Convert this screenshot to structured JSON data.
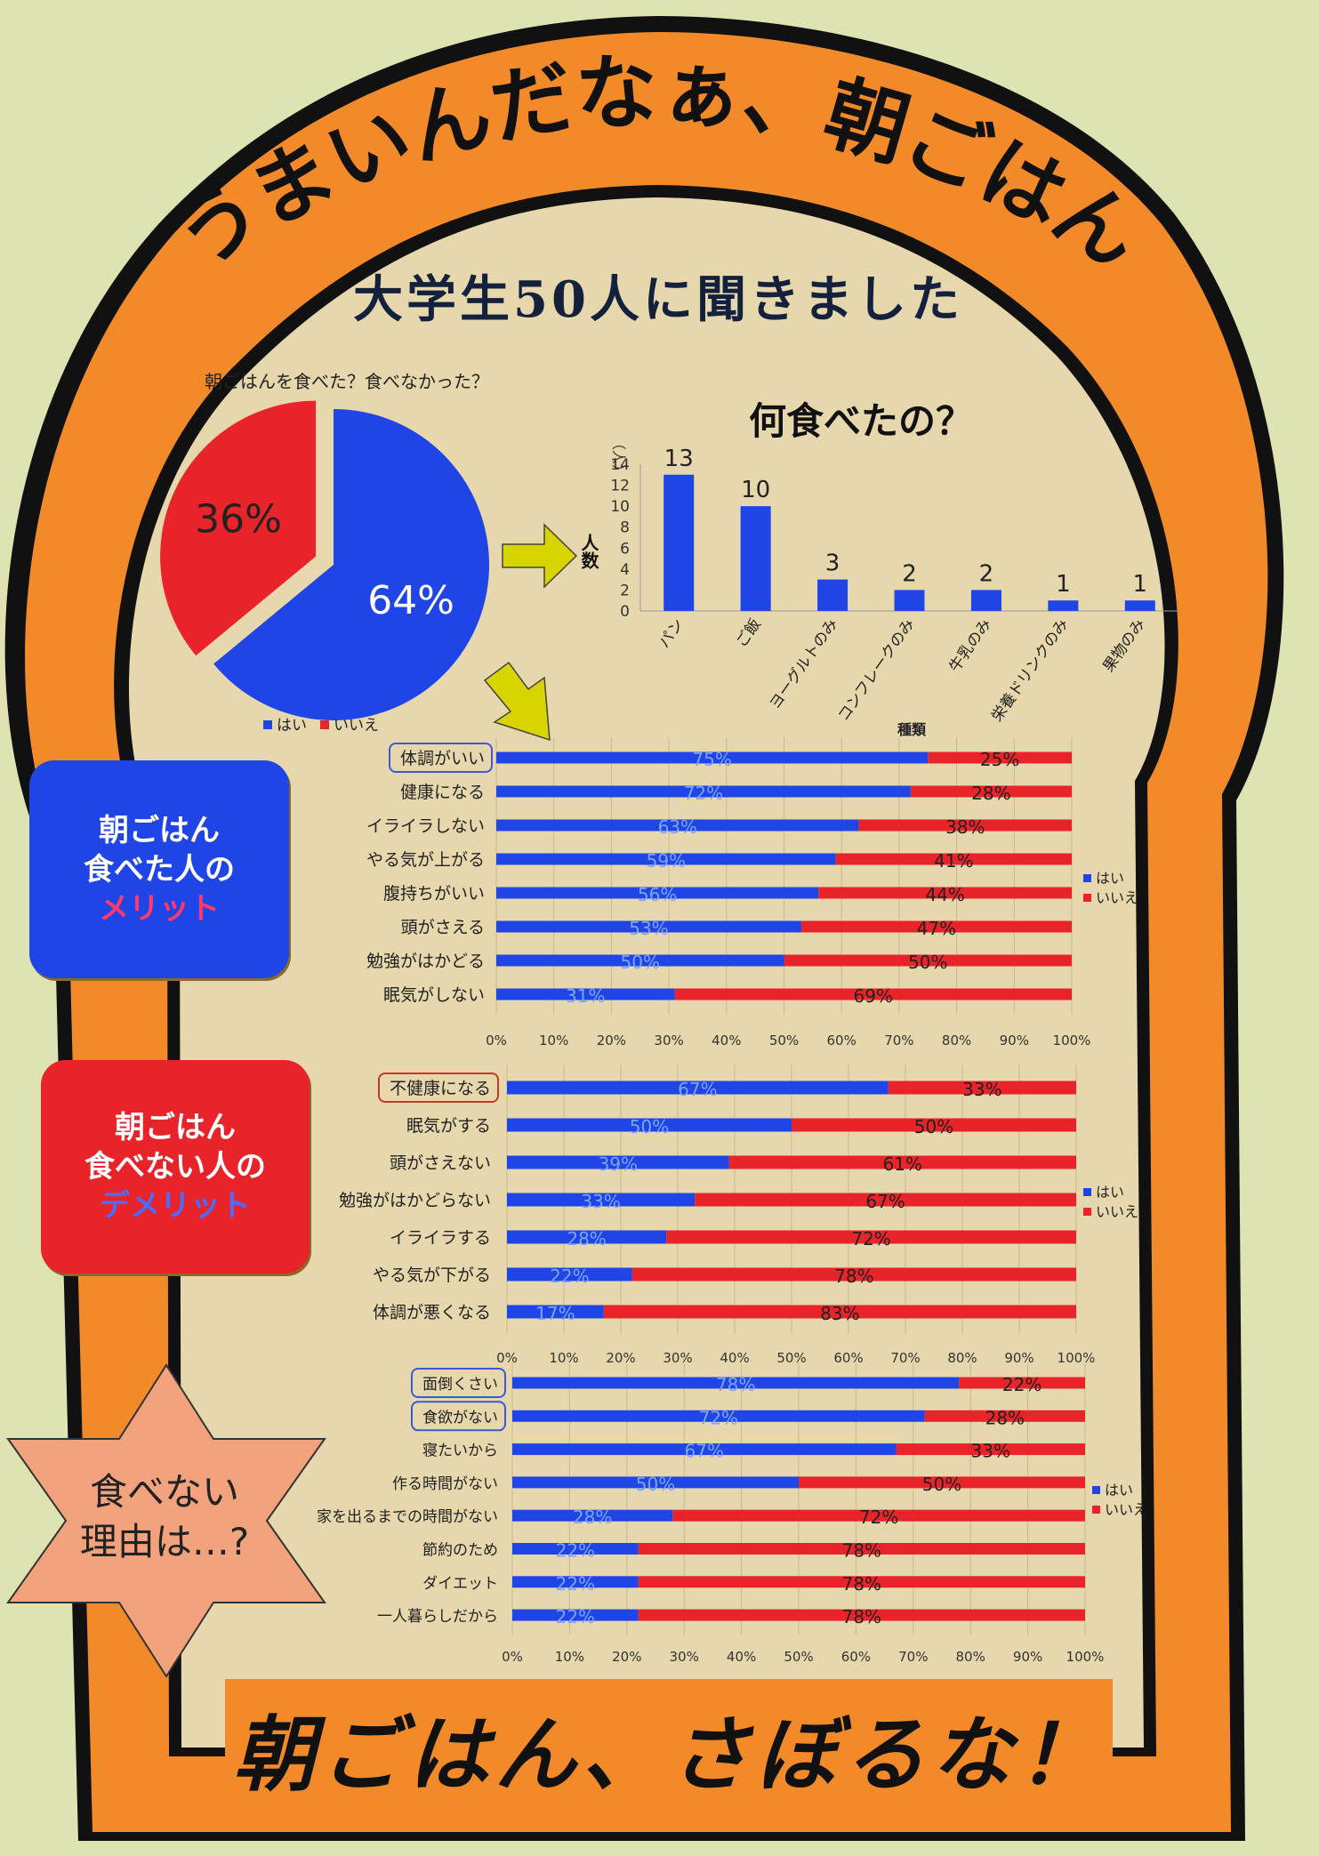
{
  "title": "うまいんだなぁ、朝ごはん",
  "subtitle": "大学生50人に聞きました",
  "footer": "朝ごはん、さぼるな！",
  "colors": {
    "yes": "#1f45e6",
    "no": "#e8232a",
    "orange": "#f28a2a",
    "paper": "#e7d7ad"
  },
  "labels": {
    "merit_box": [
      "朝ごはん",
      "食べた人の",
      "メリット"
    ],
    "demerit_box": [
      "朝ごはん",
      "食べない人の",
      "デメリット"
    ],
    "reason_star": [
      "食べない",
      "理由は…?"
    ]
  },
  "chart_data": [
    {
      "type": "pie",
      "title": "朝ごはんを食べた？食べなかった？",
      "slices": [
        {
          "label": "はい",
          "value": 64,
          "text": "64%"
        },
        {
          "label": "いいえ",
          "value": 36,
          "text": "36%"
        }
      ],
      "legend": [
        "はい",
        "いいえ"
      ],
      "legend_position": "bottom"
    },
    {
      "type": "bar",
      "title": "何食べたの？",
      "unit": "（人）",
      "ylabel": "人数",
      "xlabel": "種類",
      "categories": [
        "パン",
        "ご飯",
        "ヨーグルトのみ",
        "コンフレークのみ",
        "牛乳のみ",
        "栄養ドリンクのみ",
        "果物のみ"
      ],
      "values": [
        13,
        10,
        3,
        2,
        2,
        1,
        1
      ],
      "yticks": [
        "0",
        "2",
        "4",
        "6",
        "8",
        "10",
        "12",
        "14"
      ],
      "ylim": [
        0,
        14
      ]
    },
    {
      "type": "bar",
      "orientation": "horizontal-stacked",
      "categories": [
        "体調がいい",
        "健康になる",
        "イライラしない",
        "やる気が上がる",
        "腹持ちがいい",
        "頭がさえる",
        "勉強がはかどる",
        "眠気がしない"
      ],
      "highlighted": [
        "体調がいい"
      ],
      "series": [
        {
          "name": "はい",
          "values": [
            75,
            72,
            63,
            59,
            56,
            53,
            50,
            31
          ],
          "labels": [
            "75%",
            "72%",
            "63%",
            "59%",
            "56%",
            "53%",
            "50%",
            "31%"
          ]
        },
        {
          "name": "いいえ",
          "values": [
            25,
            28,
            38,
            41,
            44,
            47,
            50,
            69
          ],
          "labels": [
            "25%",
            "28%",
            "38%",
            "41%",
            "44%",
            "47%",
            "50%",
            "69%"
          ]
        }
      ],
      "xticks": [
        "0%",
        "10%",
        "20%",
        "30%",
        "40%",
        "50%",
        "60%",
        "70%",
        "80%",
        "90%",
        "100%"
      ],
      "legend": [
        "はい",
        "いいえ"
      ],
      "legend_position": "right"
    },
    {
      "type": "bar",
      "orientation": "horizontal-stacked",
      "categories": [
        "不健康になる",
        "眠気がする",
        "頭がさえない",
        "勉強がはかどらない",
        "イライラする",
        "やる気が下がる",
        "体調が悪くなる"
      ],
      "highlighted": [
        "不健康になる"
      ],
      "series": [
        {
          "name": "はい",
          "values": [
            67,
            50,
            39,
            33,
            28,
            22,
            17
          ],
          "labels": [
            "67%",
            "50%",
            "39%",
            "33%",
            "28%",
            "22%",
            "17%"
          ]
        },
        {
          "name": "いいえ",
          "values": [
            33,
            50,
            61,
            67,
            72,
            78,
            83
          ],
          "labels": [
            "33%",
            "50%",
            "61%",
            "67%",
            "72%",
            "78%",
            "83%"
          ]
        }
      ],
      "xticks": [
        "0%",
        "10%",
        "20%",
        "30%",
        "40%",
        "50%",
        "60%",
        "70%",
        "80%",
        "90%",
        "100%"
      ],
      "legend": [
        "はい",
        "いいえ"
      ],
      "legend_position": "right"
    },
    {
      "type": "bar",
      "orientation": "horizontal-stacked",
      "categories": [
        "面倒くさい",
        "食欲がない",
        "寝たいから",
        "作る時間がない",
        "家を出るまでの時間がない",
        "節約のため",
        "ダイエット",
        "一人暮らしだから"
      ],
      "highlighted": [
        "面倒くさい",
        "食欲がない"
      ],
      "series": [
        {
          "name": "はい",
          "values": [
            78,
            72,
            67,
            50,
            28,
            22,
            22,
            22
          ],
          "labels": [
            "78%",
            "72%",
            "67%",
            "50%",
            "28%",
            "22%",
            "22%",
            "22%"
          ]
        },
        {
          "name": "いいえ",
          "values": [
            22,
            28,
            33,
            50,
            72,
            78,
            78,
            78
          ],
          "labels": [
            "22%",
            "28%",
            "33%",
            "50%",
            "72%",
            "78%",
            "78%",
            "78%"
          ]
        }
      ],
      "xticks": [
        "0%",
        "10%",
        "20%",
        "30%",
        "40%",
        "50%",
        "60%",
        "70%",
        "80%",
        "90%",
        "100%"
      ],
      "legend": [
        "はい",
        "いいえ"
      ],
      "legend_position": "right"
    }
  ]
}
